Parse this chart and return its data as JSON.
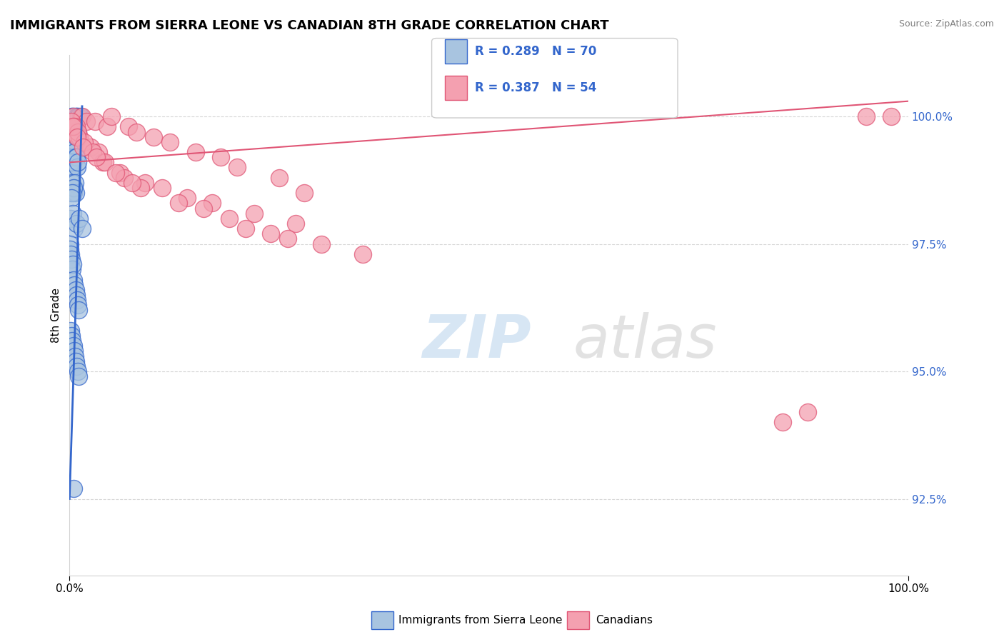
{
  "title": "IMMIGRANTS FROM SIERRA LEONE VS CANADIAN 8TH GRADE CORRELATION CHART",
  "source": "Source: ZipAtlas.com",
  "ylabel": "8th Grade",
  "ytick_values": [
    92.5,
    95.0,
    97.5,
    100.0
  ],
  "xmin": 0.0,
  "xmax": 100.0,
  "ymin": 91.0,
  "ymax": 101.2,
  "legend_r_blue": "R = 0.289",
  "legend_n_blue": "N = 70",
  "legend_r_pink": "R = 0.387",
  "legend_n_pink": "N = 54",
  "legend_label_blue": "Immigrants from Sierra Leone",
  "legend_label_pink": "Canadians",
  "blue_color": "#a8c4e0",
  "blue_line_color": "#3366cc",
  "pink_color": "#f4a0b0",
  "pink_line_color": "#e05575",
  "blue_scatter_x": [
    0.3,
    0.5,
    0.7,
    0.4,
    0.6,
    0.8,
    0.2,
    0.9,
    1.1,
    1.3,
    0.1,
    0.15,
    0.25,
    0.35,
    0.45,
    0.55,
    0.65,
    0.75,
    0.85,
    0.95,
    0.3,
    0.4,
    0.5,
    0.6,
    0.7,
    0.2,
    0.1,
    0.8,
    0.9,
    1.0,
    0.15,
    0.25,
    0.35,
    0.45,
    0.55,
    0.65,
    0.75,
    0.5,
    0.3,
    0.2,
    0.1,
    0.4,
    0.6,
    0.8,
    1.2,
    1.5,
    0.05,
    0.07,
    0.1,
    0.2,
    0.3,
    0.4,
    0.5,
    0.6,
    0.7,
    0.8,
    0.9,
    1.0,
    1.1,
    0.15,
    0.25,
    0.35,
    0.45,
    0.55,
    0.65,
    0.75,
    0.85,
    0.95,
    1.05,
    0.5
  ],
  "blue_scatter_y": [
    100.0,
    100.0,
    100.0,
    99.8,
    99.9,
    100.0,
    100.0,
    100.0,
    100.0,
    100.0,
    99.5,
    99.6,
    99.7,
    99.8,
    99.7,
    99.6,
    99.5,
    99.5,
    99.6,
    99.7,
    99.0,
    99.1,
    99.2,
    99.3,
    99.2,
    99.0,
    99.1,
    99.2,
    99.0,
    99.1,
    98.5,
    98.6,
    98.7,
    98.5,
    98.6,
    98.7,
    98.5,
    98.6,
    98.5,
    98.4,
    98.0,
    98.1,
    97.8,
    97.9,
    98.0,
    97.8,
    97.5,
    97.4,
    97.3,
    97.2,
    97.0,
    97.1,
    96.8,
    96.7,
    96.6,
    96.5,
    96.4,
    96.3,
    96.2,
    95.8,
    95.7,
    95.6,
    95.5,
    95.4,
    95.3,
    95.2,
    95.1,
    95.0,
    94.9,
    92.7
  ],
  "pink_scatter_x": [
    0.5,
    1.5,
    2.0,
    3.0,
    4.5,
    5.0,
    7.0,
    8.0,
    10.0,
    12.0,
    15.0,
    18.0,
    20.0,
    25.0,
    28.0,
    0.3,
    0.8,
    1.2,
    2.5,
    3.5,
    4.0,
    6.0,
    9.0,
    11.0,
    14.0,
    17.0,
    22.0,
    27.0,
    0.2,
    0.6,
    1.0,
    1.8,
    2.8,
    4.2,
    6.5,
    8.5,
    13.0,
    19.0,
    24.0,
    30.0,
    0.4,
    0.9,
    1.6,
    3.2,
    5.5,
    7.5,
    16.0,
    21.0,
    26.0,
    85.0,
    88.0,
    95.0,
    98.0,
    35.0
  ],
  "pink_scatter_y": [
    100.0,
    100.0,
    99.9,
    99.9,
    99.8,
    100.0,
    99.8,
    99.7,
    99.6,
    99.5,
    99.3,
    99.2,
    99.0,
    98.8,
    98.5,
    99.7,
    99.8,
    99.6,
    99.4,
    99.3,
    99.1,
    98.9,
    98.7,
    98.6,
    98.4,
    98.3,
    98.1,
    97.9,
    99.9,
    99.8,
    99.7,
    99.5,
    99.3,
    99.1,
    98.8,
    98.6,
    98.3,
    98.0,
    97.7,
    97.5,
    99.8,
    99.6,
    99.4,
    99.2,
    98.9,
    98.7,
    98.2,
    97.8,
    97.6,
    94.0,
    94.2,
    100.0,
    100.0,
    97.3
  ],
  "watermark_zip": "ZIP",
  "watermark_atlas": "atlas",
  "blue_trend_x": [
    0.0,
    1.5
  ],
  "blue_trend_y": [
    92.5,
    100.2
  ],
  "pink_trend_x": [
    0.0,
    100.0
  ],
  "pink_trend_y": [
    99.1,
    100.3
  ]
}
